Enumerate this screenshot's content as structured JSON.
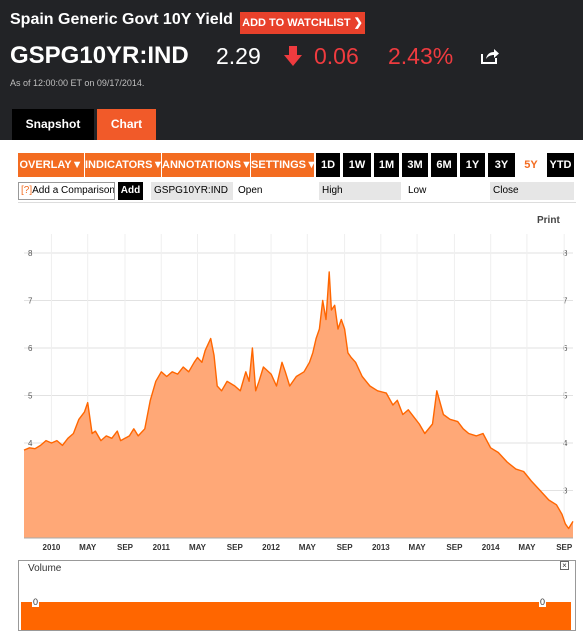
{
  "header": {
    "title": "Spain Generic Govt 10Y Yield",
    "watchlist_label": "ADD TO WATCHLIST",
    "ticker": "GSPG10YR:IND",
    "price": "2.29",
    "change": "0.06",
    "change_pct": "2.43%",
    "change_direction": "down",
    "as_of": "As of 12:00:00 ET on 09/17/2014.",
    "icons": {
      "direction": "down-arrow-icon",
      "share": "share-icon"
    },
    "colors": {
      "negative": "#ef3b3f",
      "accent": "#e8412b",
      "background": "#222326"
    }
  },
  "tabs": [
    {
      "label": "Snapshot",
      "active": false
    },
    {
      "label": "Chart",
      "active": true
    }
  ],
  "toolbar": {
    "menus": [
      "OVERLAY",
      "INDICATORS",
      "ANNOTATIONS",
      "SETTINGS"
    ],
    "ranges": [
      "1D",
      "1W",
      "1M",
      "3M",
      "6M",
      "1Y",
      "3Y",
      "5Y",
      "YTD"
    ],
    "active_range": "5Y"
  },
  "compare": {
    "prefix": "[?]",
    "placeholder": "Add a Comparison",
    "add_label": "Add",
    "fields": [
      "GSPG10YR:IND",
      "Open",
      "High",
      "Low",
      "Close"
    ]
  },
  "print_label": "Print",
  "volume": {
    "label": "Volume",
    "axis_value": "0",
    "close_label": "×"
  },
  "chart_data": {
    "type": "area",
    "ylim": [
      2.0,
      8.4
    ],
    "y_ticks": [
      "3",
      "4",
      "5",
      "6",
      "7",
      "8"
    ],
    "x_ticks": [
      "2010",
      "MAY",
      "SEP",
      "2011",
      "MAY",
      "SEP",
      "2012",
      "MAY",
      "SEP",
      "2013",
      "MAY",
      "SEP",
      "2014",
      "MAY",
      "SEP"
    ],
    "x_tick_positions": [
      0.25,
      0.58,
      0.92,
      1.25,
      1.58,
      1.92,
      2.25,
      2.58,
      2.92,
      3.25,
      3.58,
      3.92,
      4.25,
      4.58,
      4.92
    ],
    "xlim": [
      0,
      5.0
    ],
    "grid": true,
    "line_color": "#ff6600",
    "fill_color": "#ffa877",
    "x": [
      0.0,
      0.05,
      0.1,
      0.15,
      0.2,
      0.25,
      0.3,
      0.35,
      0.4,
      0.45,
      0.5,
      0.55,
      0.58,
      0.62,
      0.65,
      0.7,
      0.75,
      0.8,
      0.85,
      0.88,
      0.92,
      0.96,
      1.0,
      1.04,
      1.1,
      1.15,
      1.2,
      1.25,
      1.3,
      1.35,
      1.4,
      1.45,
      1.5,
      1.55,
      1.58,
      1.62,
      1.65,
      1.7,
      1.73,
      1.76,
      1.8,
      1.85,
      1.92,
      1.97,
      2.02,
      2.05,
      2.08,
      2.11,
      2.14,
      2.18,
      2.25,
      2.3,
      2.35,
      2.38,
      2.42,
      2.48,
      2.55,
      2.6,
      2.63,
      2.66,
      2.69,
      2.72,
      2.75,
      2.78,
      2.8,
      2.83,
      2.86,
      2.89,
      2.92,
      2.95,
      2.98,
      3.02,
      3.08,
      3.15,
      3.22,
      3.3,
      3.36,
      3.4,
      3.45,
      3.5,
      3.55,
      3.6,
      3.65,
      3.72,
      3.76,
      3.82,
      3.88,
      3.95,
      4.0,
      4.05,
      4.12,
      4.18,
      4.25,
      4.32,
      4.4,
      4.48,
      4.55,
      4.62,
      4.7,
      4.78,
      4.85,
      4.9,
      4.93,
      4.96,
      5.0
    ],
    "values": [
      3.85,
      3.9,
      3.88,
      3.95,
      4.05,
      4.0,
      4.05,
      3.95,
      4.1,
      4.2,
      4.5,
      4.65,
      4.85,
      4.2,
      4.25,
      4.05,
      4.15,
      4.1,
      4.25,
      4.05,
      4.1,
      4.15,
      4.3,
      4.15,
      4.3,
      4.9,
      5.3,
      5.5,
      5.4,
      5.5,
      5.45,
      5.6,
      5.5,
      5.7,
      5.8,
      5.7,
      5.95,
      6.2,
      5.85,
      5.2,
      5.1,
      5.3,
      5.2,
      5.1,
      5.5,
      5.3,
      6.0,
      5.1,
      5.3,
      5.6,
      5.45,
      5.2,
      5.7,
      5.5,
      5.2,
      5.4,
      5.5,
      5.7,
      5.9,
      6.2,
      6.4,
      7.0,
      6.6,
      7.6,
      6.8,
      6.9,
      6.4,
      6.6,
      6.4,
      5.9,
      5.8,
      5.7,
      5.4,
      5.2,
      5.1,
      5.05,
      4.8,
      4.9,
      4.6,
      4.7,
      4.55,
      4.4,
      4.2,
      4.4,
      5.1,
      4.6,
      4.5,
      4.45,
      4.3,
      4.2,
      4.15,
      4.2,
      3.9,
      3.8,
      3.6,
      3.45,
      3.4,
      3.2,
      3.0,
      2.8,
      2.7,
      2.5,
      2.3,
      2.2,
      2.35
    ]
  }
}
